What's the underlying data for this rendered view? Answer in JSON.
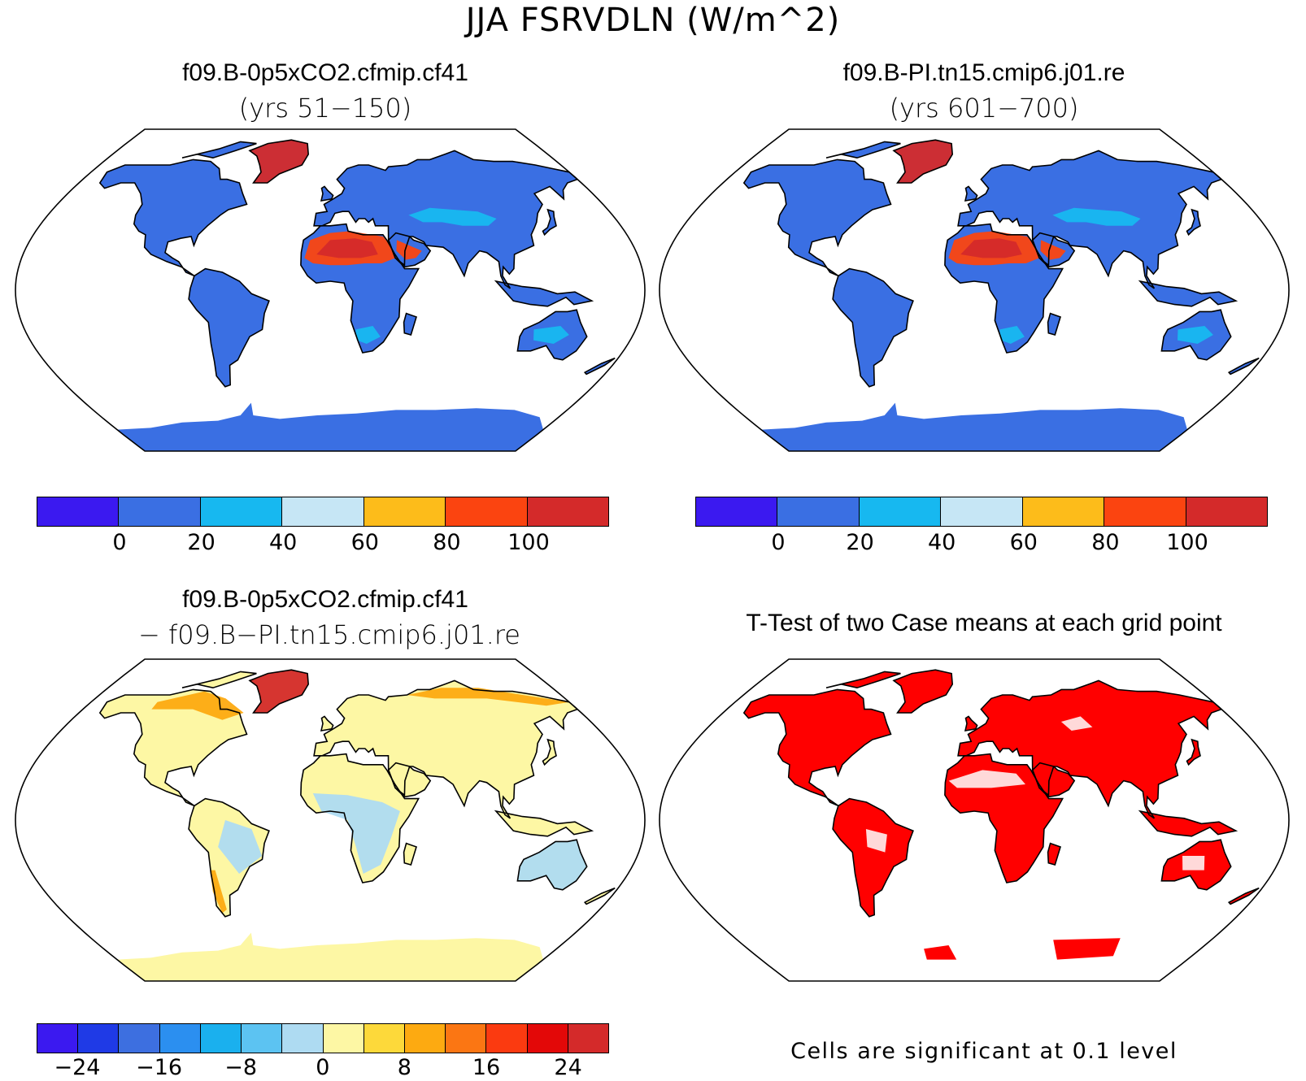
{
  "title": "JJA FSRVDLN (W/m^2)",
  "panels": {
    "case1": {
      "title": "f09.B-0p5xCO2.cfmip.cf41",
      "subtitle": "(yrs 51−150)"
    },
    "case2": {
      "title": "f09.B-PI.tn15.cmip6.j01.re",
      "subtitle": "(yrs 601−700)"
    },
    "diff": {
      "title": "f09.B-0p5xCO2.cfmip.cf41",
      "subtitle": "− f09.B−PI.tn15.cmip6.j01.re"
    },
    "ttest": {
      "title": "T-Test of two Case means at each grid point",
      "note": "Cells are significant at 0.1 level"
    }
  },
  "colorbars": {
    "abs": {
      "colors": [
        "#3b19f0",
        "#3a6fe3",
        "#17b8f0",
        "#c6e6f5",
        "#fdbc1a",
        "#fb4410",
        "#d42a2a"
      ],
      "ticks": [
        "0",
        "20",
        "40",
        "60",
        "80",
        "100"
      ]
    },
    "diff": {
      "colors": [
        "#3b19f0",
        "#1f3ae6",
        "#3d6fe0",
        "#2b8ff0",
        "#1ab0ee",
        "#5cc3f2",
        "#aedbf2",
        "#fdf7a4",
        "#fdd93a",
        "#fdaa11",
        "#fb7613",
        "#fb3a10",
        "#e30808",
        "#d42a2a"
      ],
      "ticks": [
        "−24",
        "−16",
        "−8",
        "0",
        "8",
        "16",
        "24"
      ]
    }
  },
  "map_fill": {
    "case_ocean": "#ffffff",
    "case_land": "#3a6fe3",
    "case_desert": "#fb4410",
    "case_desert_core": "#d42a2a",
    "case_greenland": "#d42a2a",
    "case_semi_arid": "#17b8f0",
    "diff_land": "#fdf7a4",
    "diff_cool": "#aedbf2",
    "diff_warm": "#fdaa11",
    "diff_hot": "#d42a2a",
    "ttest_sig": "#ff0000"
  }
}
